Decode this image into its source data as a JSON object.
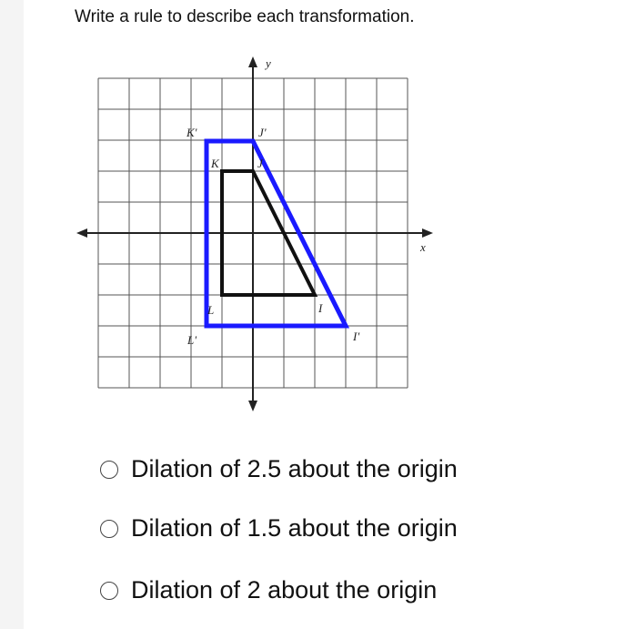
{
  "question": "Write a rule to describe each transformation.",
  "graph": {
    "axis_labels": {
      "x": "x",
      "y": "y"
    },
    "points": [
      "K'",
      "J'",
      "K",
      "J",
      "L",
      "I",
      "L'",
      "I'"
    ]
  },
  "options": [
    "Dilation of 2.5 about the origin",
    "Dilation of 1.5 about the origin",
    "Dilation of 2 about the origin"
  ]
}
